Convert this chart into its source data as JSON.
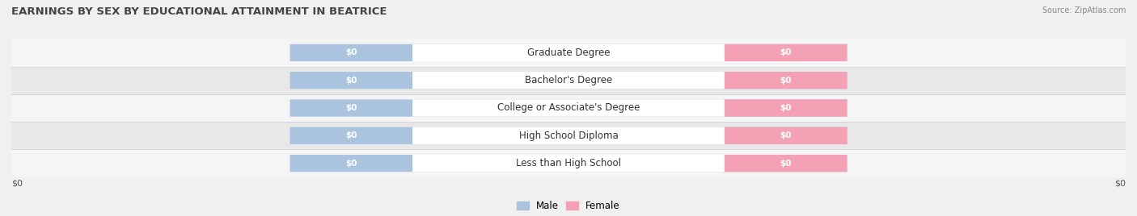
{
  "title": "EARNINGS BY SEX BY EDUCATIONAL ATTAINMENT IN BEATRICE",
  "source": "Source: ZipAtlas.com",
  "categories": [
    "Less than High School",
    "High School Diploma",
    "College or Associate's Degree",
    "Bachelor's Degree",
    "Graduate Degree"
  ],
  "male_values": [
    0,
    0,
    0,
    0,
    0
  ],
  "female_values": [
    0,
    0,
    0,
    0,
    0
  ],
  "male_color": "#aac4e0",
  "female_color": "#f4a0b5",
  "background_color": "#f0f0f0",
  "row_bg_light": "#f5f5f5",
  "row_bg_dark": "#e8e8e8",
  "title_fontsize": 9.5,
  "label_fontsize": 8.5,
  "value_fontsize": 7.5,
  "xlabel_left": "$0",
  "xlabel_right": "$0",
  "legend_male": "Male",
  "legend_female": "Female"
}
